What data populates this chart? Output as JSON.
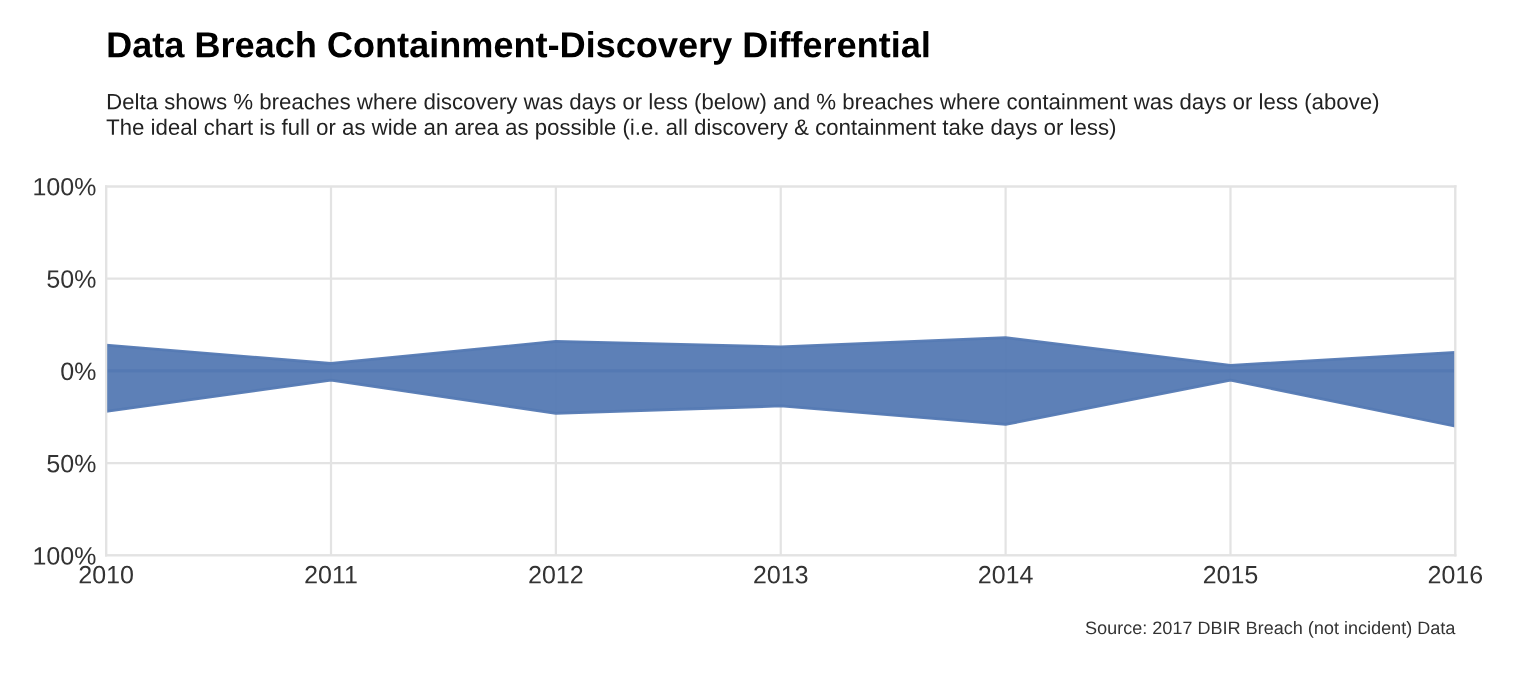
{
  "chart_data": {
    "type": "area",
    "title": "Data Breach Containment-Discovery Differential",
    "subtitle": "Delta shows % breaches where discovery was days or less (below) and % breaches where containment was days or less (above)\nThe ideal chart is full or as wide an area as possible (i.e. all discovery & containment take days or less)",
    "x": [
      2010,
      2011,
      2012,
      2013,
      2014,
      2015,
      2016
    ],
    "series": [
      {
        "color": "#5479b3",
        "values": [
          14,
          4,
          16,
          13,
          18,
          3,
          10
        ]
      },
      {
        "color": "#5479b3",
        "values": [
          -22,
          -5,
          -23,
          -19,
          -29,
          -5,
          -30
        ]
      }
    ],
    "xlim": [
      2010,
      2016
    ],
    "xticks": [
      2010,
      2011,
      2012,
      2013,
      2014,
      2015,
      2016
    ],
    "ylim": [
      -100,
      100
    ],
    "yticks": [
      {
        "value": 100,
        "label": "100%"
      },
      {
        "value": 50,
        "label": "50%"
      },
      {
        "value": 0,
        "label": "0%"
      },
      {
        "value": -50,
        "label": "50%"
      },
      {
        "value": -100,
        "label": "100%"
      }
    ],
    "grid": true,
    "legend": false,
    "annotations": [
      "Source: 2017 DBIR Breach (not incident) Data"
    ]
  }
}
